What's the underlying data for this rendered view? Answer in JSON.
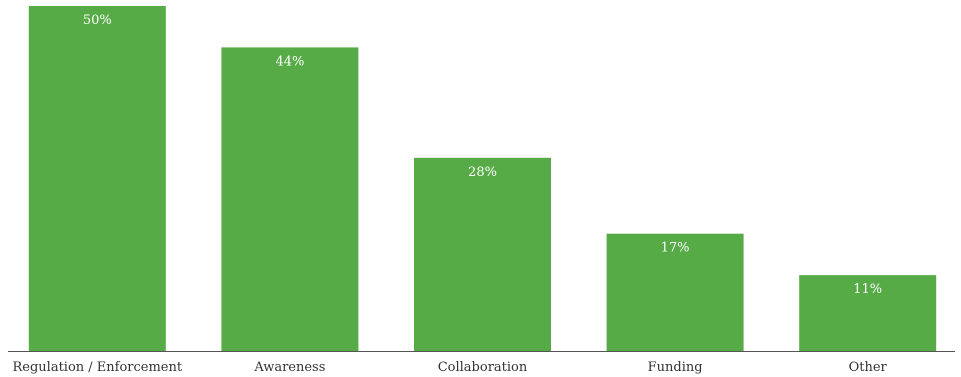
{
  "chart_data": {
    "type": "bar",
    "categories": [
      "Regulation / Enforcement",
      "Awareness",
      "Collaboration",
      "Funding",
      "Other"
    ],
    "values": [
      50,
      44,
      28,
      17,
      11
    ],
    "value_labels": [
      "50%",
      "44%",
      "28%",
      "17%",
      "11%"
    ],
    "unit": "%",
    "title": "",
    "xlabel": "",
    "ylabel": "",
    "ylim": [
      0,
      50
    ],
    "grid": false,
    "legend": "none",
    "colors": {
      "bar": "#57ab47",
      "bar_label": "#ffffff",
      "axis": "#555555",
      "tick_label": "#333333"
    }
  }
}
